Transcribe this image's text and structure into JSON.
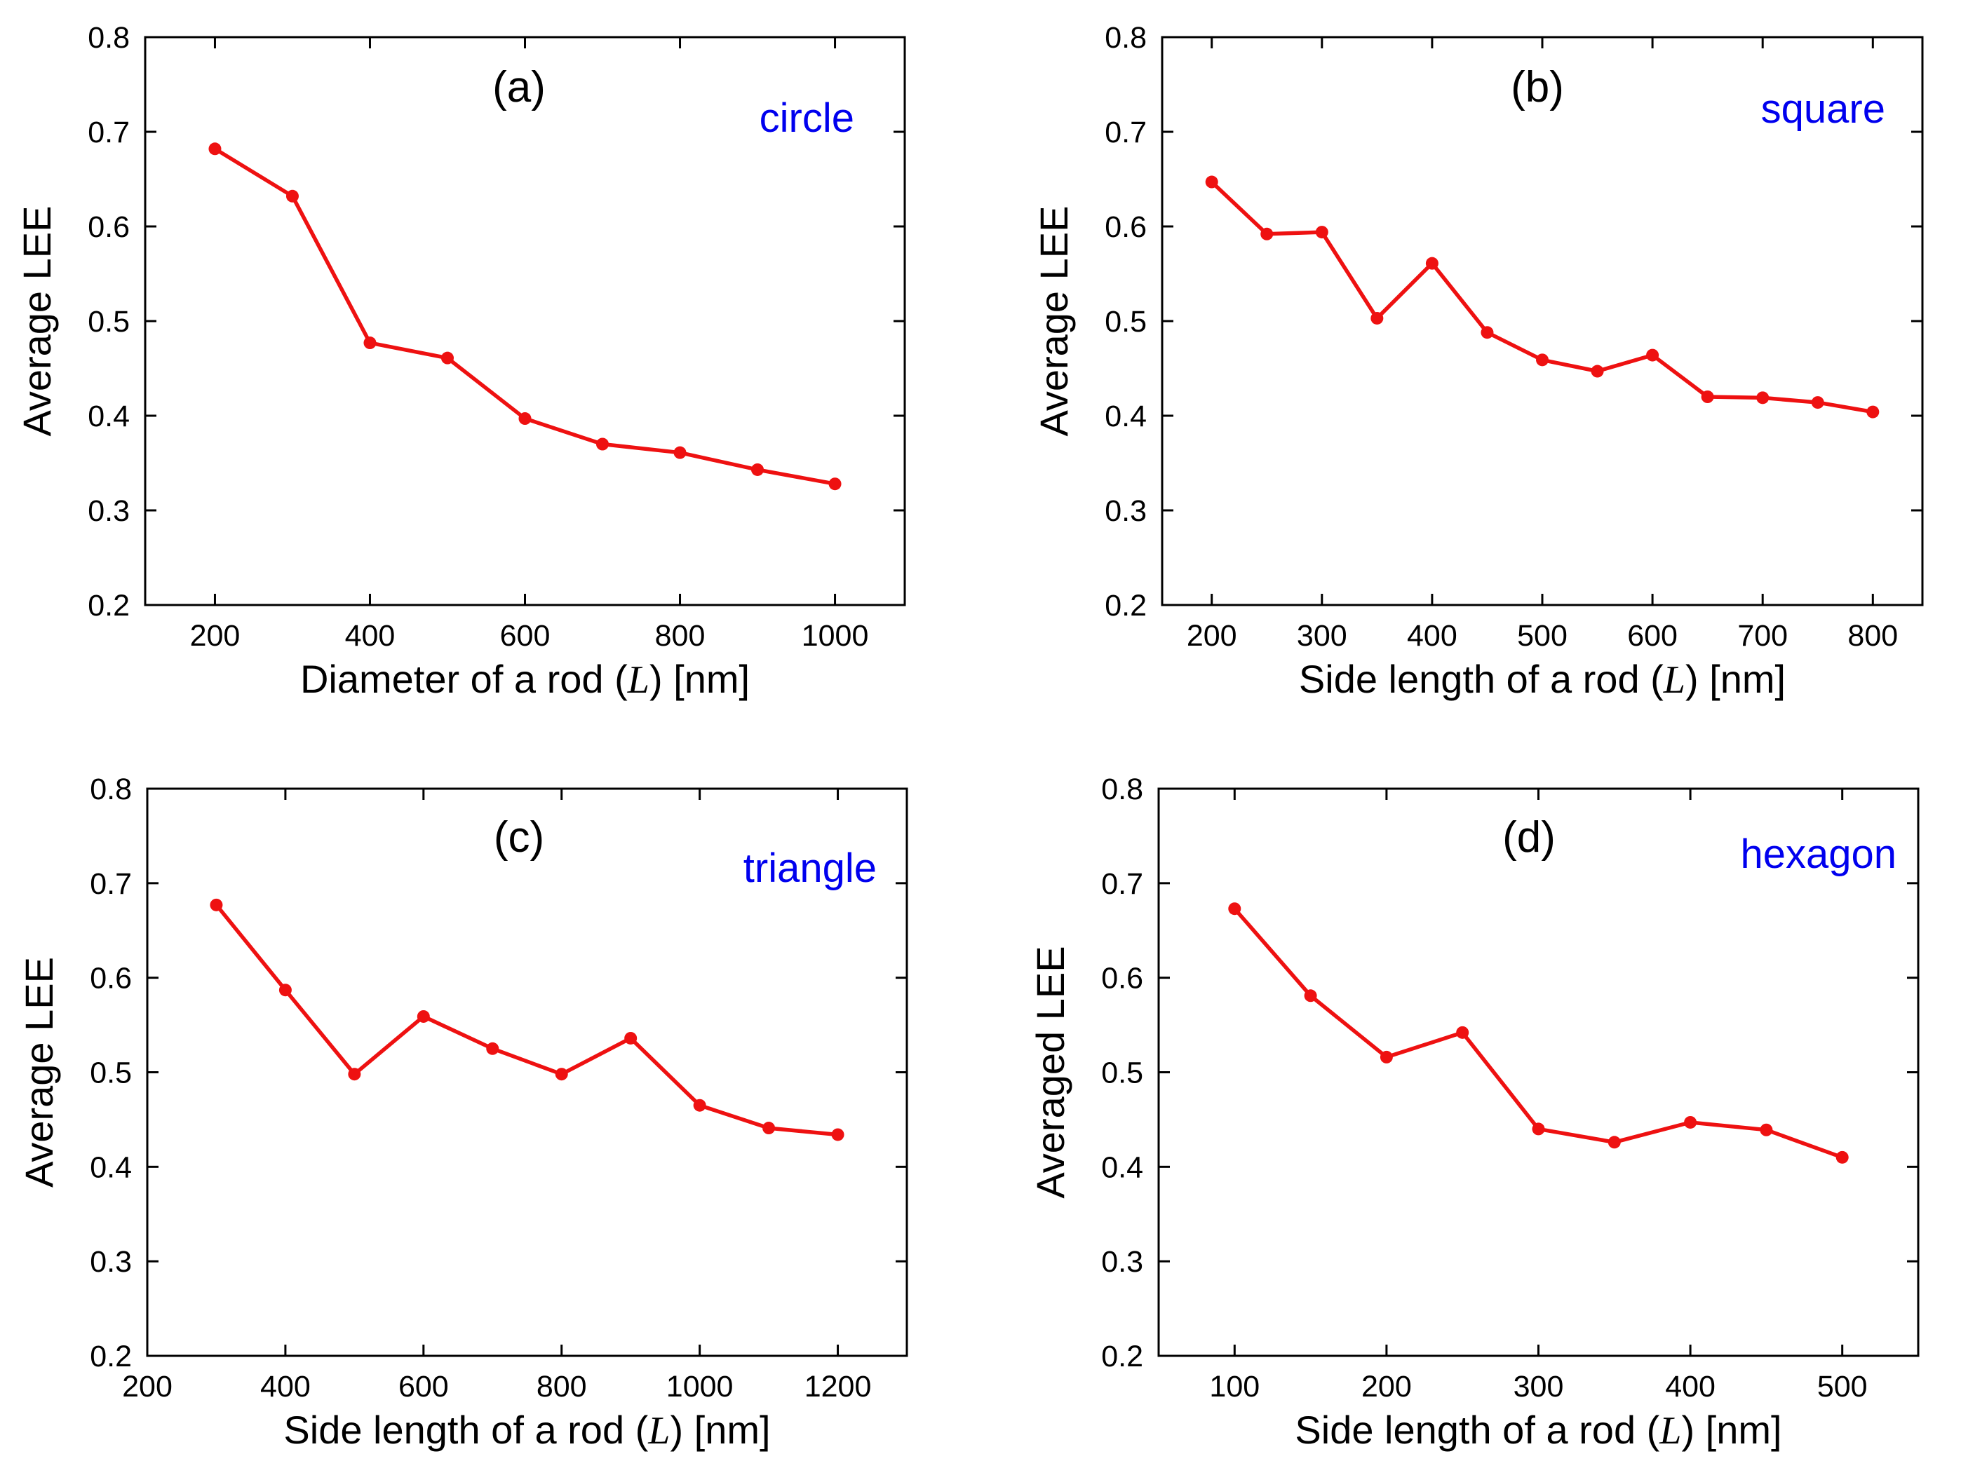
{
  "chart_data": [
    {
      "type": "line",
      "panel_label": "(a)",
      "shape_label": "circle",
      "xlabel_prefix": "Diameter of a rod (",
      "xlabel_var": "L",
      "xlabel_suffix": ") [nm]",
      "ylabel": "Average LEE",
      "xlim": [
        110,
        1090
      ],
      "ylim": [
        0.2,
        0.8
      ],
      "xticks": [
        200,
        400,
        600,
        800,
        1000
      ],
      "yticks": [
        0.2,
        0.3,
        0.4,
        0.5,
        0.6,
        0.7,
        0.8
      ],
      "x": [
        200,
        300,
        400,
        500,
        600,
        700,
        800,
        900,
        1000
      ],
      "values": [
        0.682,
        0.632,
        0.477,
        0.461,
        0.397,
        0.37,
        0.361,
        0.343,
        0.328
      ]
    },
    {
      "type": "line",
      "panel_label": "(b)",
      "shape_label": "square",
      "xlabel_prefix": "Side length of a rod (",
      "xlabel_var": "L",
      "xlabel_suffix": ") [nm]",
      "ylabel": "Average LEE",
      "xlim": [
        155,
        845
      ],
      "ylim": [
        0.2,
        0.8
      ],
      "xticks": [
        200,
        300,
        400,
        500,
        600,
        700,
        800
      ],
      "yticks": [
        0.2,
        0.3,
        0.4,
        0.5,
        0.6,
        0.7,
        0.8
      ],
      "x": [
        200,
        250,
        300,
        350,
        400,
        450,
        500,
        550,
        600,
        650,
        700,
        750,
        800
      ],
      "values": [
        0.647,
        0.592,
        0.594,
        0.503,
        0.561,
        0.488,
        0.459,
        0.447,
        0.464,
        0.42,
        0.419,
        0.414,
        0.404
      ]
    },
    {
      "type": "line",
      "panel_label": "(c)",
      "shape_label": "triangle",
      "xlabel_prefix": "Side length of a rod (",
      "xlabel_var": "L",
      "xlabel_suffix": ") [nm]",
      "ylabel": "Average LEE",
      "xlim": [
        200,
        1300
      ],
      "ylim": [
        0.2,
        0.8
      ],
      "xticks": [
        200,
        400,
        600,
        800,
        1000,
        1200
      ],
      "yticks": [
        0.2,
        0.3,
        0.4,
        0.5,
        0.6,
        0.7,
        0.8
      ],
      "x": [
        300,
        400,
        500,
        600,
        700,
        800,
        900,
        1000,
        1100,
        1200
      ],
      "values": [
        0.677,
        0.587,
        0.498,
        0.559,
        0.525,
        0.498,
        0.536,
        0.465,
        0.441,
        0.434
      ]
    },
    {
      "type": "line",
      "panel_label": "(d)",
      "shape_label": "hexagon",
      "xlabel_prefix": "Side length of a rod (",
      "xlabel_var": "L",
      "xlabel_suffix": ") [nm]",
      "ylabel": "Averaged LEE",
      "xlim": [
        50,
        550
      ],
      "ylim": [
        0.2,
        0.8
      ],
      "xticks": [
        100,
        200,
        300,
        400,
        500
      ],
      "yticks": [
        0.2,
        0.3,
        0.4,
        0.5,
        0.6,
        0.7,
        0.8
      ],
      "x": [
        100,
        150,
        200,
        250,
        300,
        350,
        400,
        450,
        500
      ],
      "values": [
        0.673,
        0.581,
        0.516,
        0.542,
        0.44,
        0.426,
        0.447,
        0.439,
        0.41
      ]
    }
  ],
  "colors": {
    "series": "#ee1111",
    "shape_label": "#0000ee",
    "axis": "#000000"
  }
}
